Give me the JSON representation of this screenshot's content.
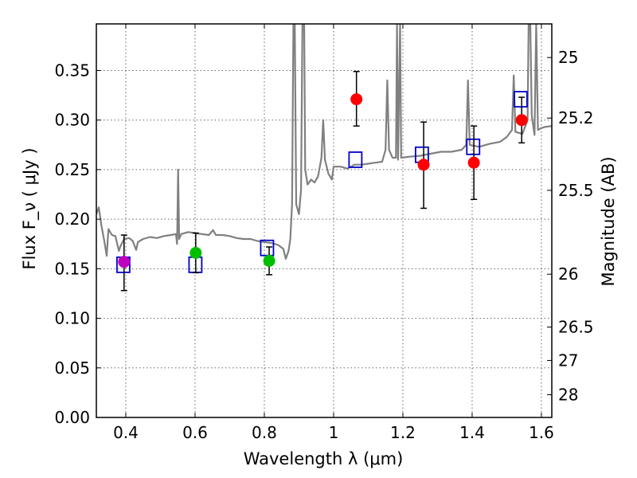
{
  "chart_data": {
    "type": "scatter",
    "xlabel": "Wavelength  λ (μm)",
    "ylabel": "Flux  F_ν  ( μJy )",
    "ylabel_right": "Magnitude (AB)",
    "xlim": [
      0.315,
      1.63
    ],
    "ylim": [
      0.0,
      0.397
    ],
    "grid": true,
    "x_ticks": [
      0.4,
      0.6,
      0.8,
      1.0,
      1.2,
      1.4,
      1.6
    ],
    "x_tick_labels": [
      "0.4",
      "0.6",
      "0.8",
      "1",
      "1.2",
      "1.4",
      "1.6"
    ],
    "y_ticks": [
      0.0,
      0.05,
      0.1,
      0.15,
      0.2,
      0.25,
      0.3,
      0.35
    ],
    "y_tick_labels": [
      "0.00",
      "0.05",
      "0.10",
      "0.15",
      "0.20",
      "0.25",
      "0.30",
      "0.35"
    ],
    "mag_ticks": [
      {
        "label": "25",
        "flux": 0.3631
      },
      {
        "label": "25.2",
        "flux": 0.302
      },
      {
        "label": "25.5",
        "flux": 0.2291
      },
      {
        "label": "26",
        "flux": 0.1445
      },
      {
        "label": "26.5",
        "flux": 0.0912
      },
      {
        "label": "27",
        "flux": 0.0575
      },
      {
        "label": "28",
        "flux": 0.0229
      }
    ],
    "observed": [
      {
        "x": 0.395,
        "y": 0.157,
        "err_low": 0.128,
        "err_high": 0.184,
        "color": "#bf00bf"
      },
      {
        "x": 0.602,
        "y": 0.166,
        "err_low": 0.146,
        "err_high": 0.186,
        "color": "#00bf00"
      },
      {
        "x": 0.814,
        "y": 0.158,
        "err_low": 0.144,
        "err_high": 0.172,
        "color": "#00bf00"
      },
      {
        "x": 1.066,
        "y": 0.321,
        "err_low": 0.294,
        "err_high": 0.349,
        "color": "#ff0000"
      },
      {
        "x": 1.26,
        "y": 0.255,
        "err_low": 0.211,
        "err_high": 0.298,
        "color": "#ff0000"
      },
      {
        "x": 1.405,
        "y": 0.257,
        "err_low": 0.22,
        "err_high": 0.294,
        "color": "#ff0000"
      },
      {
        "x": 1.543,
        "y": 0.3,
        "err_low": 0.277,
        "err_high": 0.323,
        "color": "#ff0000"
      }
    ],
    "model_photometry": [
      {
        "x": 0.393,
        "y": 0.154
      },
      {
        "x": 0.601,
        "y": 0.154
      },
      {
        "x": 0.808,
        "y": 0.171
      },
      {
        "x": 1.063,
        "y": 0.26
      },
      {
        "x": 1.255,
        "y": 0.265
      },
      {
        "x": 1.403,
        "y": 0.273
      },
      {
        "x": 1.54,
        "y": 0.321
      }
    ],
    "model_spectrum": [
      [
        0.315,
        0.205
      ],
      [
        0.322,
        0.212
      ],
      [
        0.33,
        0.193
      ],
      [
        0.338,
        0.178
      ],
      [
        0.345,
        0.163
      ],
      [
        0.35,
        0.19
      ],
      [
        0.36,
        0.184
      ],
      [
        0.37,
        0.183
      ],
      [
        0.38,
        0.168
      ],
      [
        0.385,
        0.173
      ],
      [
        0.395,
        0.18
      ],
      [
        0.41,
        0.181
      ],
      [
        0.42,
        0.178
      ],
      [
        0.43,
        0.169
      ],
      [
        0.435,
        0.177
      ],
      [
        0.45,
        0.18
      ],
      [
        0.47,
        0.182
      ],
      [
        0.49,
        0.181
      ],
      [
        0.51,
        0.183
      ],
      [
        0.53,
        0.184
      ],
      [
        0.545,
        0.185
      ],
      [
        0.548,
        0.175
      ],
      [
        0.551,
        0.25
      ],
      [
        0.554,
        0.18
      ],
      [
        0.56,
        0.185
      ],
      [
        0.58,
        0.187
      ],
      [
        0.6,
        0.186
      ],
      [
        0.62,
        0.185
      ],
      [
        0.64,
        0.184
      ],
      [
        0.652,
        0.189
      ],
      [
        0.66,
        0.184
      ],
      [
        0.68,
        0.184
      ],
      [
        0.7,
        0.183
      ],
      [
        0.72,
        0.181
      ],
      [
        0.74,
        0.18
      ],
      [
        0.76,
        0.18
      ],
      [
        0.78,
        0.178
      ],
      [
        0.8,
        0.177
      ],
      [
        0.82,
        0.176
      ],
      [
        0.84,
        0.174
      ],
      [
        0.855,
        0.17
      ],
      [
        0.862,
        0.16
      ],
      [
        0.87,
        0.168
      ],
      [
        0.875,
        0.18
      ],
      [
        0.88,
        0.215
      ],
      [
        0.884,
        0.397
      ],
      [
        0.888,
        0.397
      ],
      [
        0.892,
        0.215
      ],
      [
        0.9,
        0.205
      ],
      [
        0.906,
        0.23
      ],
      [
        0.91,
        0.397
      ],
      [
        0.915,
        0.397
      ],
      [
        0.918,
        0.25
      ],
      [
        0.925,
        0.235
      ],
      [
        0.935,
        0.24
      ],
      [
        0.945,
        0.237
      ],
      [
        0.955,
        0.243
      ],
      [
        0.965,
        0.262
      ],
      [
        0.97,
        0.3
      ],
      [
        0.975,
        0.26
      ],
      [
        0.985,
        0.246
      ],
      [
        0.995,
        0.24
      ],
      [
        1.0,
        0.253
      ],
      [
        1.02,
        0.253
      ],
      [
        1.04,
        0.251
      ],
      [
        1.06,
        0.255
      ],
      [
        1.08,
        0.255
      ],
      [
        1.1,
        0.256
      ],
      [
        1.12,
        0.257
      ],
      [
        1.14,
        0.258
      ],
      [
        1.15,
        0.27
      ],
      [
        1.155,
        0.34
      ],
      [
        1.16,
        0.27
      ],
      [
        1.17,
        0.262
      ],
      [
        1.18,
        0.262
      ],
      [
        1.183,
        0.397
      ],
      [
        1.186,
        0.26
      ],
      [
        1.192,
        0.397
      ],
      [
        1.195,
        0.262
      ],
      [
        1.22,
        0.263
      ],
      [
        1.25,
        0.264
      ],
      [
        1.28,
        0.266
      ],
      [
        1.31,
        0.268
      ],
      [
        1.34,
        0.268
      ],
      [
        1.37,
        0.27
      ],
      [
        1.383,
        0.275
      ],
      [
        1.388,
        0.34
      ],
      [
        1.393,
        0.275
      ],
      [
        1.42,
        0.273
      ],
      [
        1.45,
        0.276
      ],
      [
        1.48,
        0.278
      ],
      [
        1.5,
        0.283
      ],
      [
        1.515,
        0.29
      ],
      [
        1.52,
        0.345
      ],
      [
        1.525,
        0.288
      ],
      [
        1.545,
        0.286
      ],
      [
        1.56,
        0.3
      ],
      [
        1.563,
        0.397
      ],
      [
        1.568,
        0.397
      ],
      [
        1.572,
        0.305
      ],
      [
        1.58,
        0.285
      ],
      [
        1.585,
        0.397
      ],
      [
        1.59,
        0.29
      ],
      [
        1.6,
        0.292
      ],
      [
        1.61,
        0.293
      ],
      [
        1.63,
        0.294
      ]
    ],
    "colors": {
      "spectrum": "#808080",
      "model_box": "#0000cc",
      "errorbar": "#000000"
    }
  }
}
